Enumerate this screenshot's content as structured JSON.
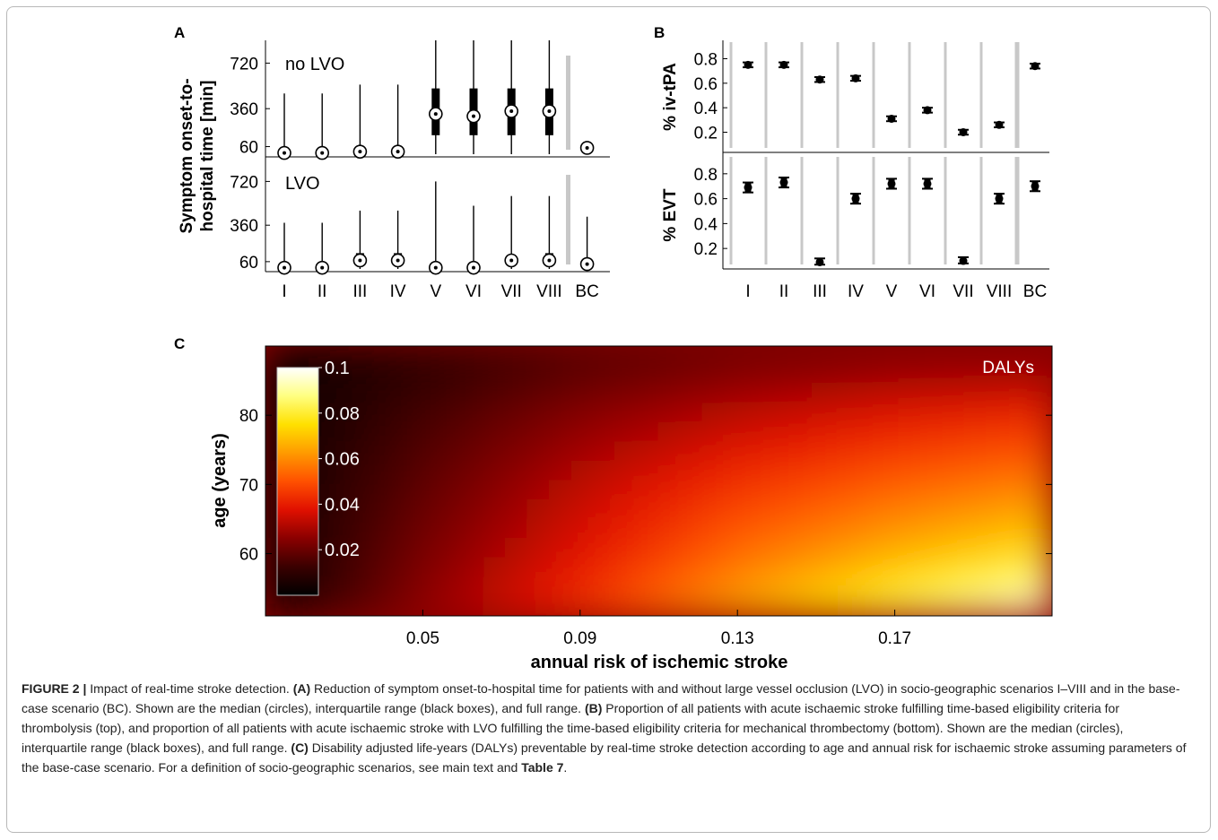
{
  "panel_labels": [
    "A",
    "B",
    "C"
  ],
  "scenarios": [
    "I",
    "II",
    "III",
    "IV",
    "V",
    "VI",
    "VII",
    "VIII",
    "BC"
  ],
  "chart_data": [
    {
      "id": "A",
      "type": "boxplot",
      "ylabel": "Symptom onset-to-hospital time [min]",
      "ylabel_lines": [
        "Symptom onset-to-",
        "hospital time [min]"
      ],
      "categories": [
        "I",
        "II",
        "III",
        "IV",
        "V",
        "VI",
        "VII",
        "VIII",
        "BC"
      ],
      "subpanels": [
        {
          "label": "no LVO",
          "yticks": [
            60,
            360,
            720
          ],
          "ylim": [
            0,
            900
          ],
          "median": [
            10,
            10,
            20,
            20,
            318,
            300,
            340,
            340,
            50
          ],
          "q1": [
            null,
            null,
            10,
            10,
            150,
            150,
            150,
            150,
            null
          ],
          "q3": [
            null,
            null,
            60,
            60,
            520,
            520,
            520,
            520,
            null
          ],
          "min": [
            0,
            0,
            0,
            0,
            0,
            0,
            0,
            0,
            20
          ],
          "max": [
            480,
            480,
            550,
            550,
            900,
            900,
            900,
            900,
            100
          ]
        },
        {
          "label": "LVO",
          "yticks": [
            60,
            360,
            720
          ],
          "ylim": [
            0,
            900
          ],
          "median": [
            10,
            10,
            70,
            70,
            10,
            10,
            70,
            70,
            40
          ],
          "q1": [
            null,
            null,
            70,
            70,
            null,
            null,
            70,
            70,
            null
          ],
          "q3": [
            null,
            null,
            130,
            130,
            null,
            null,
            100,
            130,
            null
          ],
          "min": [
            0,
            0,
            0,
            0,
            0,
            0,
            0,
            0,
            10
          ],
          "max": [
            380,
            380,
            480,
            480,
            720,
            520,
            600,
            600,
            430
          ]
        }
      ]
    },
    {
      "id": "B",
      "type": "errorbar",
      "categories": [
        "I",
        "II",
        "III",
        "IV",
        "V",
        "VI",
        "VII",
        "VIII",
        "BC"
      ],
      "subpanels": [
        {
          "ylabel": "% iv-tPA",
          "yticks": [
            0.2,
            0.4,
            0.6,
            0.8
          ],
          "ylim": [
            0.05,
            0.95
          ],
          "median": [
            0.75,
            0.75,
            0.63,
            0.64,
            0.31,
            0.38,
            0.2,
            0.26,
            0.74
          ],
          "low": [
            0.73,
            0.73,
            0.61,
            0.62,
            0.29,
            0.36,
            0.18,
            0.24,
            0.72
          ],
          "high": [
            0.77,
            0.77,
            0.65,
            0.66,
            0.33,
            0.4,
            0.22,
            0.28,
            0.76
          ]
        },
        {
          "ylabel": "% EVT",
          "yticks": [
            0.2,
            0.4,
            0.6,
            0.8
          ],
          "ylim": [
            0.05,
            0.95
          ],
          "median": [
            0.69,
            0.73,
            0.09,
            0.6,
            0.72,
            0.72,
            0.1,
            0.6,
            0.7
          ],
          "low": [
            0.65,
            0.69,
            0.07,
            0.56,
            0.68,
            0.68,
            0.08,
            0.56,
            0.66
          ],
          "high": [
            0.73,
            0.77,
            0.12,
            0.64,
            0.76,
            0.76,
            0.13,
            0.64,
            0.74
          ]
        }
      ]
    },
    {
      "id": "C",
      "type": "heatmap",
      "title": "DALYs",
      "xlabel": "annual risk of ischemic stroke",
      "ylabel": "age (years)",
      "xticks": [
        "0.05",
        "0.09",
        "0.13",
        "0.17"
      ],
      "yticks": [
        "60",
        "70",
        "80"
      ],
      "xlim": [
        0.01,
        0.21
      ],
      "ylim": [
        51,
        90
      ],
      "colorbar_ticks": [
        "0.02",
        "0.04",
        "0.06",
        "0.08",
        "0.1"
      ],
      "colorbar_range": [
        0,
        0.1
      ],
      "colormap": [
        "#000000",
        "#3a0000",
        "#8a0000",
        "#e01000",
        "#ff5000",
        "#ff9a00",
        "#ffe000",
        "#ffff80",
        "#ffffff"
      ],
      "x": [
        0.01,
        0.05,
        0.09,
        0.13,
        0.17,
        0.21
      ],
      "y": [
        90,
        80,
        70,
        60,
        51
      ],
      "z": [
        [
          0.001,
          0.008,
          0.014,
          0.018,
          0.02,
          0.02
        ],
        [
          0.002,
          0.014,
          0.024,
          0.032,
          0.038,
          0.042
        ],
        [
          0.003,
          0.018,
          0.032,
          0.044,
          0.052,
          0.058
        ],
        [
          0.003,
          0.022,
          0.038,
          0.054,
          0.066,
          0.076
        ],
        [
          0.004,
          0.026,
          0.045,
          0.066,
          0.085,
          0.1
        ]
      ]
    }
  ],
  "caption": {
    "figure_label": "FIGURE 2 |",
    "intro": "Impact of real-time stroke detection.",
    "a_label": "(A)",
    "a_text": "Reduction of symptom onset-to-hospital time for patients with and without large vessel occlusion (LVO) in socio-geographic scenarios I–VIII and in the base-case scenario (BC). Shown are the median (circles), interquartile range (black boxes), and full range.",
    "b_label": "(B)",
    "b_text": "Proportion of all patients with acute ischaemic stroke fulfilling time-based eligibility criteria for thrombolysis (top), and proportion of all patients with acute ischaemic stroke with LVO fulfilling the time-based eligibility criteria for mechanical thrombectomy (bottom). Shown are the median (circles), interquartile range (black boxes), and full range.",
    "c_label": "(C)",
    "c_text": "Disability adjusted life-years (DALYs) preventable by real-time stroke detection according to age and annual risk for ischaemic stroke assuming parameters of the base-case scenario. For a definition of socio-geographic scenarios, see main text and",
    "table_ref": "Table 7",
    "end": "."
  }
}
